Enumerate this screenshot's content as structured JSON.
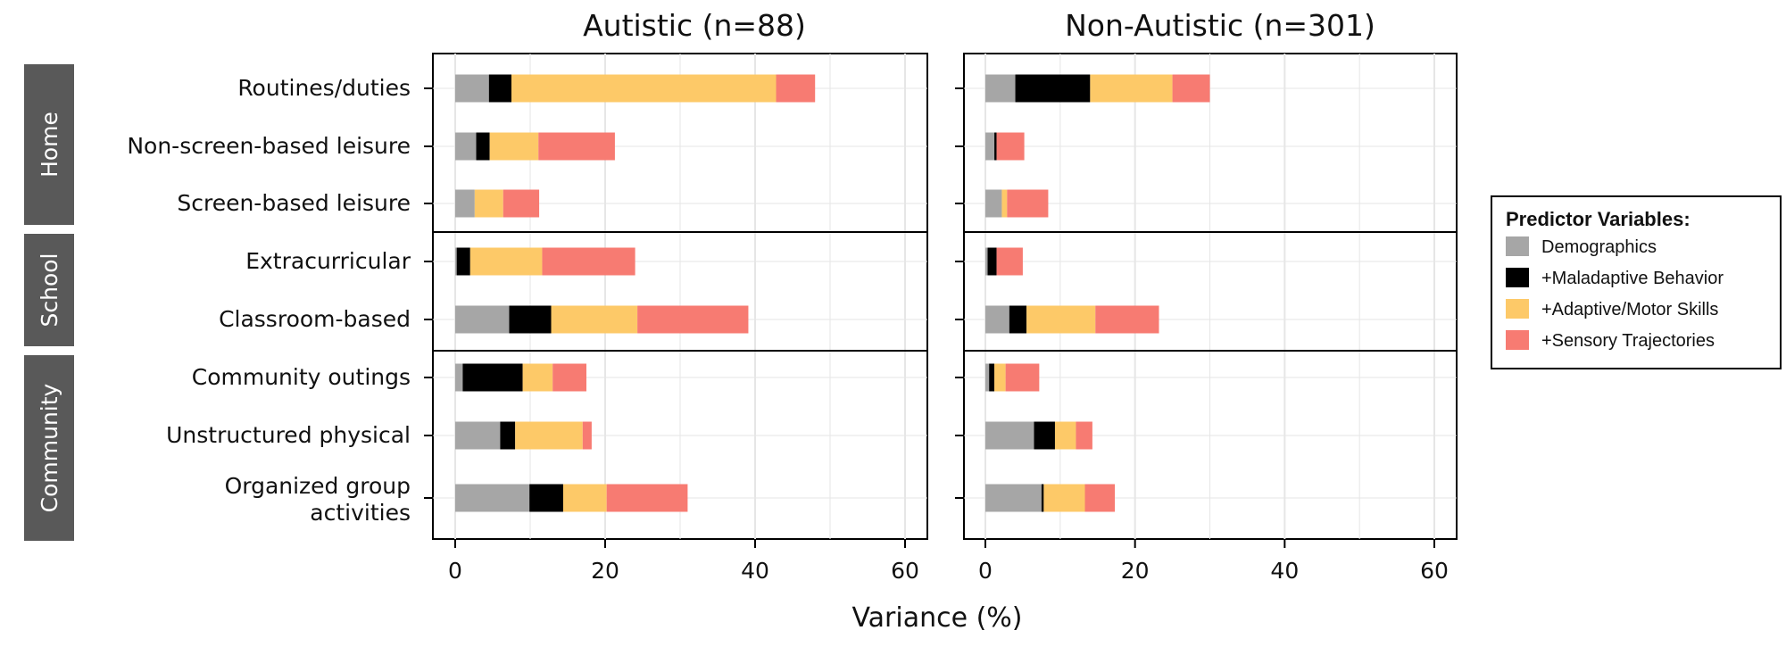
{
  "chart_data": {
    "type": "bar",
    "orientation": "horizontal",
    "stacked": true,
    "xlabel": "Variance (%)",
    "xlim": [
      0,
      60
    ],
    "xticks": [
      0,
      20,
      40,
      60
    ],
    "grid": true,
    "legend_position": "right",
    "legend_title": "Predictor Variables:",
    "groups": [
      {
        "label": "Home",
        "categories": [
          0,
          1,
          2
        ]
      },
      {
        "label": "School",
        "categories": [
          3,
          4
        ]
      },
      {
        "label": "Community",
        "categories": [
          5,
          6,
          7
        ]
      }
    ],
    "categories": [
      [
        "Routines/duties"
      ],
      [
        "Non-screen-based leisure"
      ],
      [
        "Screen-based leisure"
      ],
      [
        "Extracurricular"
      ],
      [
        "Classroom-based"
      ],
      [
        "Community outings"
      ],
      [
        "Unstructured physical"
      ],
      [
        "Organized group",
        "activities"
      ]
    ],
    "series": [
      {
        "name": "Demographics",
        "color": "#a6a6a6"
      },
      {
        "name": "+Maladaptive Behavior",
        "color": "#000000"
      },
      {
        "name": "+Adaptive/Motor Skills",
        "color": "#fdc968"
      },
      {
        "name": "+Sensory Trajectories",
        "color": "#f77b72"
      }
    ],
    "panels": [
      {
        "title": "Autistic (n=88)",
        "values": [
          [
            4.5,
            3.0,
            35.3,
            5.2
          ],
          [
            2.8,
            1.8,
            6.5,
            10.2
          ],
          [
            2.6,
            0.0,
            3.8,
            4.8
          ],
          [
            0.2,
            1.8,
            9.6,
            12.4
          ],
          [
            7.2,
            5.6,
            11.5,
            14.8
          ],
          [
            1.0,
            8.0,
            4.0,
            4.5
          ],
          [
            6.0,
            2.0,
            9.0,
            1.2
          ],
          [
            9.9,
            4.5,
            5.8,
            10.8
          ]
        ]
      },
      {
        "title": "Non-Autistic (n=301)",
        "values": [
          [
            4.0,
            10.0,
            11.0,
            5.0
          ],
          [
            1.2,
            0.3,
            0.0,
            3.7
          ],
          [
            2.2,
            0.0,
            0.7,
            5.5
          ],
          [
            0.3,
            1.2,
            0.0,
            3.5
          ],
          [
            3.2,
            2.3,
            9.2,
            8.5
          ],
          [
            0.5,
            0.7,
            1.5,
            4.5
          ],
          [
            6.5,
            2.8,
            2.8,
            2.2
          ],
          [
            7.5,
            0.3,
            5.5,
            4.0
          ]
        ]
      }
    ]
  }
}
